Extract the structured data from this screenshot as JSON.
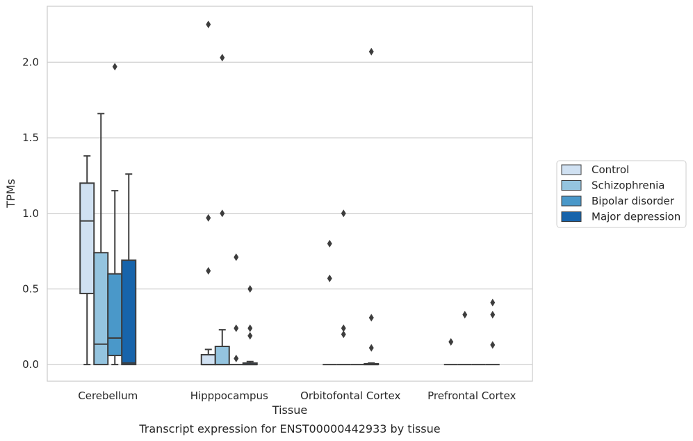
{
  "chart_data": {
    "type": "boxplot",
    "title": "",
    "caption": "Transcript expression for ENST00000442933 by tissue",
    "xlabel": "Tissue",
    "ylabel": "TPMs",
    "ylim": [
      -0.11,
      2.37
    ],
    "yticks": [
      0.0,
      0.5,
      1.0,
      1.5,
      2.0
    ],
    "ytick_labels": [
      "0.0",
      "0.5",
      "1.0",
      "1.5",
      "2.0"
    ],
    "grid": "horizontal",
    "legend_position": "right",
    "categories": [
      "Cerebellum",
      "Hipppocampus",
      "Orbitofontal Cortex",
      "Prefrontal Cortex"
    ],
    "series": [
      {
        "name": "Control",
        "color": "#d0e1f2",
        "boxes": [
          {
            "min": 0.0,
            "q1": 0.47,
            "median": 0.95,
            "q3": 1.2,
            "max": 1.38,
            "outliers": []
          },
          {
            "min": 0.0,
            "q1": 0.0,
            "median": 0.0,
            "q3": 0.065,
            "max": 0.1,
            "outliers": [
              0.62,
              0.97,
              2.25
            ]
          },
          {
            "min": 0.0,
            "q1": 0.0,
            "median": 0.0,
            "q3": 0.0,
            "max": 0.0,
            "outliers": [
              0.57,
              0.8
            ]
          },
          {
            "min": 0.0,
            "q1": 0.0,
            "median": 0.0,
            "q3": 0.0,
            "max": 0.0,
            "outliers": [
              0.15
            ]
          }
        ]
      },
      {
        "name": "Schizophrenia",
        "color": "#94c4df",
        "boxes": [
          {
            "min": 0.0,
            "q1": 0.0,
            "median": 0.135,
            "q3": 0.74,
            "max": 1.66,
            "outliers": []
          },
          {
            "min": 0.0,
            "q1": 0.0,
            "median": 0.0,
            "q3": 0.12,
            "max": 0.23,
            "outliers": [
              1.0,
              2.03
            ]
          },
          {
            "min": 0.0,
            "q1": 0.0,
            "median": 0.0,
            "q3": 0.0,
            "max": 0.0,
            "outliers": [
              0.2,
              0.24,
              1.0
            ]
          },
          {
            "min": 0.0,
            "q1": 0.0,
            "median": 0.0,
            "q3": 0.0,
            "max": 0.0,
            "outliers": [
              0.33
            ]
          }
        ]
      },
      {
        "name": "Bipolar disorder",
        "color": "#4a98c9",
        "boxes": [
          {
            "min": 0.0,
            "q1": 0.06,
            "median": 0.175,
            "q3": 0.6,
            "max": 1.15,
            "outliers": [
              1.97
            ]
          },
          {
            "min": 0.0,
            "q1": 0.0,
            "median": 0.0,
            "q3": 0.0,
            "max": 0.0,
            "outliers": [
              0.04,
              0.24,
              0.71
            ]
          },
          {
            "min": 0.0,
            "q1": 0.0,
            "median": 0.0,
            "q3": 0.0,
            "max": 0.0,
            "outliers": []
          },
          {
            "min": 0.0,
            "q1": 0.0,
            "median": 0.0,
            "q3": 0.0,
            "max": 0.0,
            "outliers": []
          }
        ]
      },
      {
        "name": "Major depression",
        "color": "#1764ab",
        "boxes": [
          {
            "min": 0.0,
            "q1": 0.0,
            "median": 0.01,
            "q3": 0.69,
            "max": 1.26,
            "outliers": []
          },
          {
            "min": 0.0,
            "q1": 0.0,
            "median": 0.0,
            "q3": 0.01,
            "max": 0.02,
            "outliers": [
              0.19,
              0.24,
              0.5
            ]
          },
          {
            "min": 0.0,
            "q1": 0.0,
            "median": 0.0,
            "q3": 0.005,
            "max": 0.01,
            "outliers": [
              0.11,
              0.31,
              2.07
            ]
          },
          {
            "min": 0.0,
            "q1": 0.0,
            "median": 0.0,
            "q3": 0.0,
            "max": 0.0,
            "outliers": [
              0.13,
              0.33,
              0.41
            ]
          }
        ]
      }
    ],
    "colors": {
      "axes_edge": "#cccccc",
      "grid": "#cccccc",
      "box_edge": "#3d3d3d",
      "outlier": "#3d3d3d",
      "legend_edge": "#cccccc"
    }
  }
}
